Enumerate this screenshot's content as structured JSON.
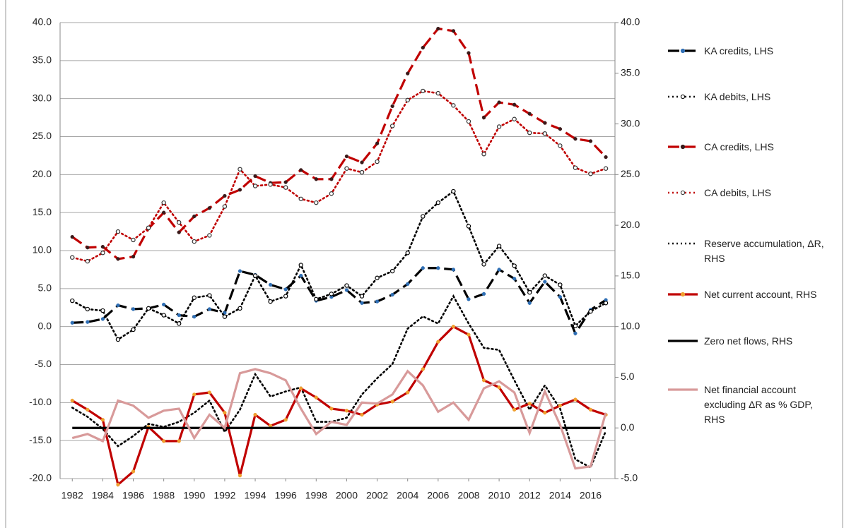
{
  "chart_data": {
    "type": "line",
    "x": [
      1982,
      1983,
      1984,
      1985,
      1986,
      1987,
      1988,
      1989,
      1990,
      1991,
      1992,
      1993,
      1994,
      1995,
      1996,
      1997,
      1998,
      1999,
      2000,
      2001,
      2002,
      2003,
      2004,
      2005,
      2006,
      2007,
      2008,
      2009,
      2010,
      2011,
      2012,
      2013,
      2014,
      2015,
      2016,
      2017
    ],
    "xlim": [
      1981.2,
      2017.6
    ],
    "xticks": [
      1982,
      1984,
      1986,
      1988,
      1990,
      1992,
      1994,
      1996,
      1998,
      2000,
      2002,
      2004,
      2006,
      2008,
      2010,
      2012,
      2014,
      2016
    ],
    "ylim": [
      -20,
      40
    ],
    "yticks": [
      {
        "value": -20,
        "label": "-20.0"
      },
      {
        "value": -15,
        "label": "-15.0"
      },
      {
        "value": -10,
        "label": "-10.0"
      },
      {
        "value": -5,
        "label": "-5.0"
      },
      {
        "value": 0,
        "label": "0.0"
      },
      {
        "value": 5,
        "label": "5.0"
      },
      {
        "value": 10,
        "label": "10.0"
      },
      {
        "value": 15,
        "label": "15.0"
      },
      {
        "value": 20,
        "label": "20.0"
      },
      {
        "value": 25,
        "label": "25.0"
      },
      {
        "value": 30,
        "label": "30.0"
      },
      {
        "value": 35,
        "label": "35.0"
      },
      {
        "value": 40,
        "label": "40.0"
      }
    ],
    "y2lim": [
      -5,
      40
    ],
    "y2ticks": [
      {
        "value": -5,
        "label": "-5.0"
      },
      {
        "value": 0,
        "label": "0.0"
      },
      {
        "value": 5,
        "label": "5.0"
      },
      {
        "value": 10,
        "label": "10.0"
      },
      {
        "value": 15,
        "label": "15.0"
      },
      {
        "value": 20,
        "label": "20.0"
      },
      {
        "value": 25,
        "label": "25.0"
      },
      {
        "value": 30,
        "label": "30.0"
      },
      {
        "value": 35,
        "label": "35.0"
      },
      {
        "value": 40,
        "label": "40.0"
      }
    ],
    "grid": true,
    "legend": "right",
    "series": [
      {
        "name": "KA credits, LHS",
        "color": "#000000",
        "dash": "dashed",
        "marker": "dot",
        "marker_color": "#2f6fb5",
        "values": [
          0.5,
          0.6,
          1.0,
          2.8,
          2.3,
          2.4,
          2.9,
          1.5,
          1.3,
          2.3,
          1.8,
          7.3,
          6.8,
          5.5,
          4.9,
          6.7,
          3.4,
          3.9,
          4.8,
          3.1,
          3.3,
          4.2,
          5.6,
          7.7,
          7.7,
          7.5,
          3.6,
          4.3,
          7.5,
          6.3,
          3.1,
          5.9,
          3.9,
          -0.9,
          2.2,
          3.5
        ]
      },
      {
        "name": "KA debits, LHS",
        "color": "#000000",
        "dash": "dotted",
        "marker": "open",
        "marker_color": "#000000",
        "values": [
          3.4,
          2.3,
          2.1,
          -1.7,
          -0.4,
          2.4,
          1.5,
          0.4,
          3.8,
          4.1,
          1.3,
          2.4,
          6.7,
          3.3,
          4.0,
          8.1,
          3.6,
          4.3,
          5.4,
          4.0,
          6.4,
          7.3,
          9.7,
          14.5,
          16.3,
          17.8,
          13.2,
          8.2,
          10.6,
          8.0,
          4.5,
          6.7,
          5.5,
          0.1,
          2.0,
          3.1
        ]
      },
      {
        "name": "CA credits, LHS",
        "color": "#c00000",
        "dash": "dashed",
        "marker": "dot",
        "marker_color": "#3a1a1a",
        "values": [
          11.8,
          10.4,
          10.5,
          8.9,
          9.2,
          12.9,
          15.0,
          12.4,
          14.5,
          15.6,
          17.2,
          18.0,
          19.8,
          18.9,
          19.0,
          20.6,
          19.4,
          19.4,
          22.4,
          21.6,
          24.1,
          29.0,
          33.3,
          36.7,
          39.2,
          38.9,
          36.0,
          27.5,
          29.5,
          29.2,
          28.0,
          26.8,
          26.0,
          24.7,
          24.4,
          22.3
        ]
      },
      {
        "name": "CA debits, LHS",
        "color": "#c00000",
        "dash": "dotted",
        "marker": "open",
        "marker_color": "#333333",
        "values": [
          9.1,
          8.6,
          9.7,
          12.5,
          11.4,
          13.0,
          16.3,
          13.7,
          11.2,
          12.0,
          15.8,
          20.7,
          18.5,
          18.7,
          18.3,
          16.8,
          16.3,
          17.5,
          20.8,
          20.3,
          21.7,
          26.4,
          29.8,
          31.0,
          30.7,
          29.1,
          27.0,
          22.7,
          26.3,
          27.3,
          25.5,
          25.4,
          23.8,
          20.9,
          20.1,
          20.8
        ]
      },
      {
        "name": "Reserve accumulation, ΔR, RHS",
        "color": "#000000",
        "dash": "dotted",
        "marker": "none",
        "axis": "y2",
        "values": [
          2.0,
          1.1,
          -0.1,
          -1.8,
          -0.8,
          0.4,
          0.1,
          0.6,
          1.5,
          2.7,
          -0.4,
          1.8,
          5.3,
          3.1,
          3.6,
          4.0,
          0.6,
          0.6,
          1.0,
          3.3,
          4.9,
          6.3,
          9.8,
          11.0,
          10.3,
          13.0,
          10.3,
          7.9,
          7.7,
          4.7,
          1.8,
          4.2,
          1.9,
          -3.1,
          -3.9,
          -0.3
        ]
      },
      {
        "name": "Net current account, RHS",
        "color": "#c00000",
        "dash": "solid",
        "marker": "dot",
        "marker_color": "#f0a030",
        "axis": "y2",
        "values": [
          2.7,
          1.8,
          0.8,
          -5.6,
          -4.3,
          0.1,
          -1.3,
          -1.3,
          3.3,
          3.5,
          1.5,
          -4.7,
          1.3,
          0.2,
          0.8,
          3.9,
          3.0,
          1.9,
          1.7,
          1.3,
          2.3,
          2.6,
          3.5,
          5.8,
          8.5,
          10.0,
          9.2,
          4.7,
          4.0,
          1.8,
          2.4,
          1.5,
          2.2,
          2.8,
          1.8,
          1.3
        ]
      },
      {
        "name": "Zero net flows, RHS",
        "color": "#000000",
        "dash": "solid",
        "marker": "none",
        "axis": "y2",
        "values": [
          0,
          0,
          0,
          0,
          0,
          0,
          0,
          0,
          0,
          0,
          0,
          0,
          0,
          0,
          0,
          0,
          0,
          0,
          0,
          0,
          0,
          0,
          0,
          0,
          0,
          0,
          0,
          0,
          0,
          0,
          0,
          0,
          0,
          0,
          0,
          0
        ]
      },
      {
        "name": "Net financial account excluding ΔR as % GDP, RHS",
        "color": "#d89a9a",
        "dash": "solid",
        "marker": "none",
        "axis": "y2",
        "values": [
          -1.0,
          -0.6,
          -1.3,
          2.7,
          2.2,
          1.0,
          1.7,
          1.9,
          -1.0,
          1.3,
          0.0,
          5.4,
          5.8,
          5.4,
          4.7,
          1.9,
          -0.6,
          0.6,
          0.3,
          2.5,
          2.4,
          3.3,
          5.6,
          4.2,
          1.6,
          2.5,
          0.8,
          3.9,
          4.6,
          3.5,
          -0.5,
          3.6,
          0.3,
          -4.0,
          -3.8,
          1.5
        ]
      }
    ]
  }
}
